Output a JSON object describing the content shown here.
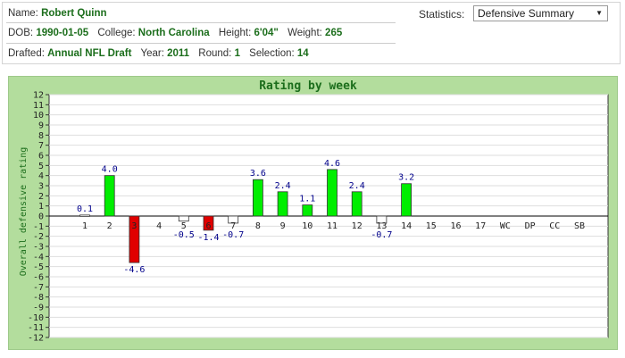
{
  "player": {
    "name_label": "Name:",
    "name": "Robert Quinn",
    "dob_label": "DOB:",
    "dob": "1990-01-05",
    "college_label": "College:",
    "college": "North Carolina",
    "height_label": "Height:",
    "height": "6'04\"",
    "weight_label": "Weight:",
    "weight": "265",
    "drafted_label": "Drafted:",
    "drafted": "Annual NFL Draft",
    "year_label": "Year:",
    "year": "2011",
    "round_label": "Round:",
    "round": "1",
    "selection_label": "Selection:",
    "selection": "14"
  },
  "statistics": {
    "label": "Statistics:",
    "selected": "Defensive Summary"
  },
  "colors": {
    "positive": "#00ee00",
    "negative": "#e00000",
    "small": "#ffffff",
    "label": "#00008b",
    "frame": "#b3dd9d",
    "axis_text": "#1c6e1c"
  },
  "chart_data": {
    "type": "bar",
    "title": "Rating by week",
    "ylabel": "Overall defensive rating",
    "xlabel": "",
    "ylim": [
      -12,
      12
    ],
    "yticks": [
      "12",
      "11",
      "10",
      "9",
      "8",
      "7",
      "6",
      "5",
      "4",
      "3",
      "2",
      "1",
      "0",
      "-1",
      "-2",
      "-3",
      "-4",
      "-5",
      "-6",
      "-7",
      "-8",
      "-9",
      "-10",
      "-11",
      "-12"
    ],
    "categories": [
      "1",
      "2",
      "3",
      "4",
      "5",
      "6",
      "7",
      "8",
      "9",
      "10",
      "11",
      "12",
      "13",
      "14",
      "15",
      "16",
      "17",
      "WC",
      "DP",
      "CC",
      "SB"
    ],
    "values": [
      0.1,
      4.0,
      -4.6,
      null,
      -0.5,
      -1.4,
      -0.7,
      3.6,
      2.4,
      1.1,
      4.6,
      2.4,
      -0.7,
      3.2,
      null,
      null,
      null,
      null,
      null,
      null,
      null
    ],
    "value_labels": [
      "0.1",
      "4.0",
      "-4.6",
      "",
      "-0.5",
      "-1.4",
      "-0.7",
      "3.6",
      "2.4",
      "1.1",
      "4.6",
      "2.4",
      "-0.7",
      "3.2",
      "",
      "",
      "",
      "",
      "",
      "",
      ""
    ],
    "grid": true,
    "legend": "none"
  }
}
